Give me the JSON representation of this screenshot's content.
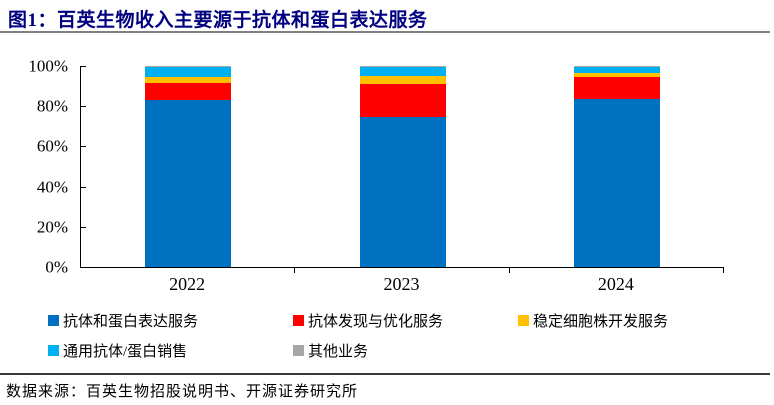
{
  "figure": {
    "title": "图1：百英生物收入主要源于抗体和蛋白表达服务",
    "source": "数据来源：百英生物招股说明书、开源证券研究所"
  },
  "chart_data": {
    "type": "bar",
    "subtype": "stacked-percent",
    "title": "百英生物收入主要源于抗体和蛋白表达服务",
    "categories": [
      "2022",
      "2023",
      "2024"
    ],
    "series": [
      {
        "name": "抗体和蛋白表达服务",
        "color": "#0070C0",
        "values": [
          83.0,
          74.5,
          83.5
        ]
      },
      {
        "name": "抗体发现与优化服务",
        "color": "#FF0000",
        "values": [
          8.5,
          16.5,
          11.0
        ]
      },
      {
        "name": "稳定细胞株开发服务",
        "color": "#FFC000",
        "values": [
          3.0,
          4.0,
          2.0
        ]
      },
      {
        "name": "通用抗体/蛋白销售",
        "color": "#00B0F0",
        "values": [
          5.0,
          4.5,
          3.0
        ]
      },
      {
        "name": "其他业务",
        "color": "#A6A6A6",
        "values": [
          0.5,
          0.5,
          0.5
        ]
      }
    ],
    "xlabel": "",
    "ylabel": "",
    "ylim": [
      0,
      100
    ],
    "yticks": [
      "0%",
      "20%",
      "40%",
      "60%",
      "80%",
      "100%"
    ],
    "grid": false,
    "legend_position": "bottom"
  }
}
